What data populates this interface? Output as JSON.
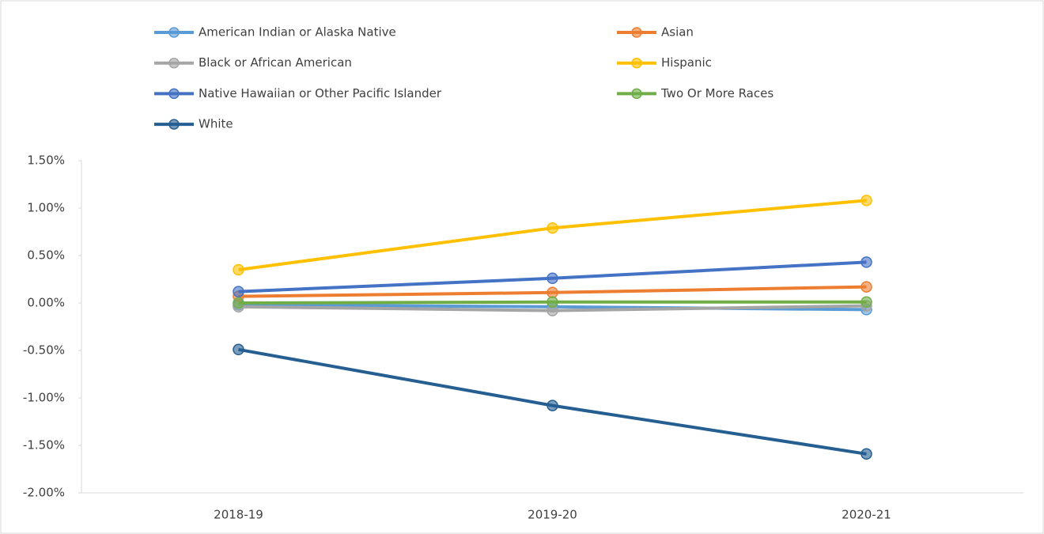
{
  "chart_data": {
    "type": "line",
    "categories": [
      "2018-19",
      "2019-20",
      "2020-21"
    ],
    "series": [
      {
        "name": "American Indian or Alaska Native",
        "color": "#5b9bd5",
        "values": [
          -0.02,
          -0.04,
          -0.07
        ]
      },
      {
        "name": "Asian",
        "color": "#ed7d31",
        "values": [
          0.07,
          0.11,
          0.17
        ]
      },
      {
        "name": "Black or African American",
        "color": "#a5a5a5",
        "values": [
          -0.04,
          -0.08,
          -0.03
        ]
      },
      {
        "name": "Hispanic",
        "color": "#ffc000",
        "values": [
          0.35,
          0.79,
          1.08
        ]
      },
      {
        "name": "Native Hawaiian or Other Pacific Islander",
        "color": "#4472c4",
        "values": [
          0.12,
          0.26,
          0.43
        ]
      },
      {
        "name": "Two Or More Races",
        "color": "#70ad47",
        "values": [
          0.0,
          0.01,
          0.01
        ]
      },
      {
        "name": "White",
        "color": "#255e91",
        "values": [
          -0.49,
          -1.08,
          -1.59
        ]
      }
    ],
    "ylim": [
      -2,
      1.5
    ],
    "yticks": [
      {
        "value": -2,
        "label": "-2.00%"
      },
      {
        "value": -1.5,
        "label": "-1.50%"
      },
      {
        "value": -1,
        "label": "-1.00%"
      },
      {
        "value": -0.5,
        "label": "-0.50%"
      },
      {
        "value": 0,
        "label": "0.00%"
      },
      {
        "value": 0.5,
        "label": "0.50%"
      },
      {
        "value": 1,
        "label": "1.00%"
      },
      {
        "value": 1.5,
        "label": "1.50%"
      }
    ],
    "grid": false,
    "legend": "top"
  }
}
